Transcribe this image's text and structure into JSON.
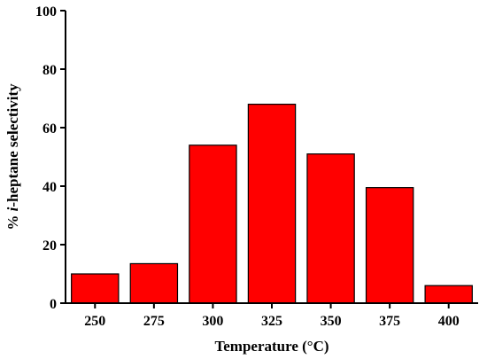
{
  "chart_data": {
    "type": "bar",
    "categories": [
      "250",
      "275",
      "300",
      "325",
      "350",
      "375",
      "400"
    ],
    "values": [
      10,
      13.5,
      54,
      68,
      51,
      39.5,
      6
    ],
    "xlabel": "Temperature (°C)",
    "ylabel_prefix": "% ",
    "ylabel_italic": "i",
    "ylabel_suffix": "-heptane selectivity",
    "ylim": [
      0,
      100
    ],
    "yticks": [
      "0",
      "20",
      "40",
      "60",
      "80",
      "100"
    ],
    "bar_color": "#ff0000",
    "grid": false
  }
}
